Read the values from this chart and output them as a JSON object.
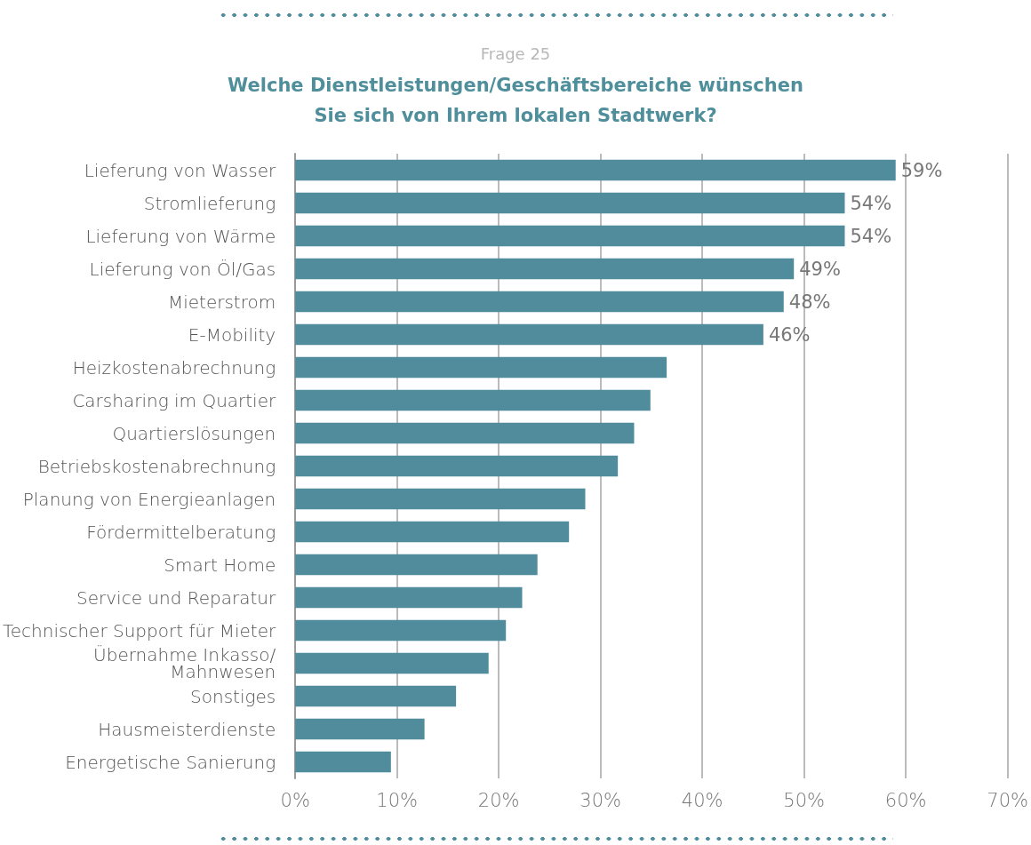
{
  "chart_data": {
    "type": "bar",
    "orientation": "horizontal",
    "subtitle": "Frage 25",
    "title": "Welche Dienstleistungen/Geschäftsbereiche wünschen\nSie sich von Ihrem lokalen Stadtwerk?",
    "categories": [
      "Lieferung von Wasser",
      "Stromlieferung",
      "Lieferung von Wärme",
      "Lieferung von Öl/Gas",
      "Mieterstrom",
      "E-Mobility",
      "Heizkostenabrechnung",
      "Carsharing im Quartier",
      "Quartierslösungen",
      "Betriebskostenabrechnung",
      "Planung von Energieanlagen",
      "Fördermittelberatung",
      "Smart Home",
      "Service und Reparatur",
      "Technischer Support für Mieter",
      "Übernahme Inkasso/\nMahnwesen",
      "Sonstiges",
      "Hausmeisterdienste",
      "Energetische Sanierung"
    ],
    "values": [
      59,
      54,
      54,
      49,
      48,
      46,
      36.5,
      34.9,
      33.3,
      31.7,
      28.5,
      26.9,
      23.8,
      22.3,
      20.7,
      19.0,
      15.8,
      12.7,
      9.4
    ],
    "value_labels": [
      "59%",
      "54%",
      "54%",
      "49%",
      "48%",
      "46%",
      null,
      null,
      null,
      null,
      null,
      null,
      null,
      null,
      null,
      null,
      null,
      null,
      null
    ],
    "color": "#518c9c",
    "xlim": [
      0,
      70
    ],
    "xticks": [
      {
        "value": 0,
        "label": "0%"
      },
      {
        "value": 10,
        "label": "10%"
      },
      {
        "value": 20,
        "label": "20%"
      },
      {
        "value": 30,
        "label": "30%"
      },
      {
        "value": 40,
        "label": "40%"
      },
      {
        "value": 50,
        "label": "50%"
      },
      {
        "value": 60,
        "label": "60%"
      },
      {
        "value": 70,
        "label": "70%"
      }
    ],
    "grid": "x"
  }
}
